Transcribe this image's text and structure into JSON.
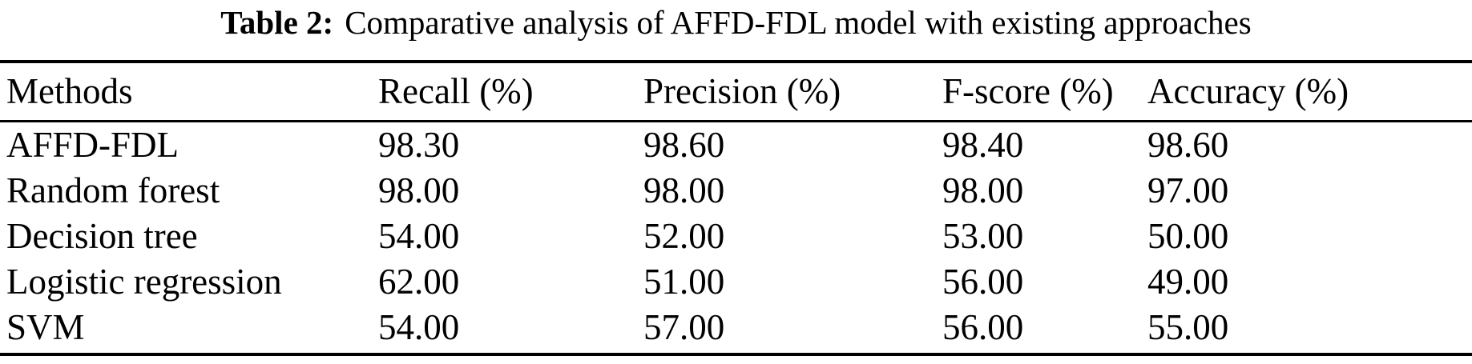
{
  "colors": {
    "background": "#ffffff",
    "text": "#000000",
    "rule": "#000000"
  },
  "caption": {
    "label": "Table 2:",
    "text": "Comparative analysis of AFFD-FDL model with existing approaches"
  },
  "table": {
    "columns": [
      "Methods",
      "Recall (%)",
      "Precision (%)",
      "F-score (%)",
      "Accuracy (%)"
    ],
    "rows": [
      {
        "method": "AFFD-FDL",
        "recall": "98.30",
        "precision": "98.60",
        "fscore": "98.40",
        "accuracy": "98.60"
      },
      {
        "method": "Random forest",
        "recall": "98.00",
        "precision": "98.00",
        "fscore": "98.00",
        "accuracy": "97.00"
      },
      {
        "method": "Decision tree",
        "recall": "54.00",
        "precision": "52.00",
        "fscore": "53.00",
        "accuracy": "50.00"
      },
      {
        "method": "Logistic regression",
        "recall": "62.00",
        "precision": "51.00",
        "fscore": "56.00",
        "accuracy": "49.00"
      },
      {
        "method": "SVM",
        "recall": "54.00",
        "precision": "57.00",
        "fscore": "56.00",
        "accuracy": "55.00"
      }
    ]
  }
}
